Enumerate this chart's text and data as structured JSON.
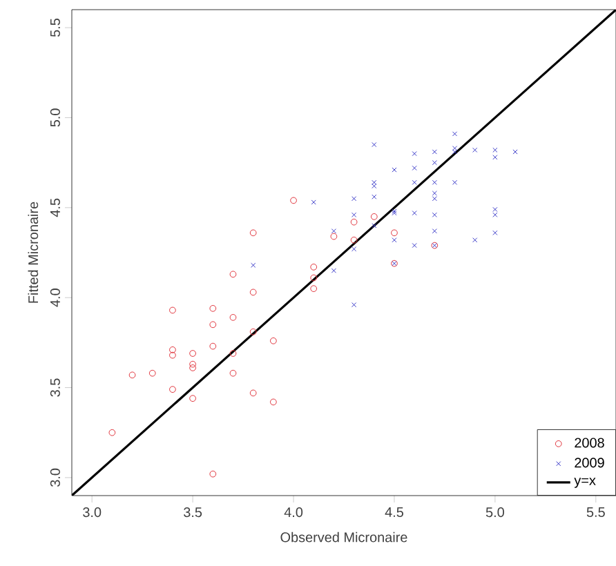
{
  "chart_data": {
    "type": "scatter",
    "xlabel": "Observed Micronaire",
    "ylabel": "Fitted Micronaire",
    "xlim": [
      2.9,
      5.6
    ],
    "ylim": [
      2.9,
      5.6
    ],
    "xticks": [
      {
        "value": 3.0,
        "label": "3.0"
      },
      {
        "value": 3.5,
        "label": "3.5"
      },
      {
        "value": 4.0,
        "label": "4.0"
      },
      {
        "value": 4.5,
        "label": "4.5"
      },
      {
        "value": 5.0,
        "label": "5.0"
      },
      {
        "value": 5.5,
        "label": "5.5"
      }
    ],
    "yticks": [
      {
        "value": 3.0,
        "label": "3.0"
      },
      {
        "value": 3.5,
        "label": "3.5"
      },
      {
        "value": 4.0,
        "label": "4.0"
      },
      {
        "value": 4.5,
        "label": "4.5"
      },
      {
        "value": 5.0,
        "label": "5.0"
      },
      {
        "value": 5.5,
        "label": "5.5"
      }
    ],
    "grid": false,
    "legend": "bottom right",
    "series": [
      {
        "name": "2008",
        "color": "#e0343c",
        "marker": "circle",
        "x": [
          3.1,
          3.2,
          3.3,
          3.4,
          3.4,
          3.4,
          3.4,
          3.5,
          3.5,
          3.5,
          3.5,
          3.6,
          3.6,
          3.6,
          3.6,
          3.7,
          3.7,
          3.7,
          3.7,
          3.8,
          3.8,
          3.8,
          3.8,
          3.9,
          3.9,
          4.0,
          4.1,
          4.1,
          4.1,
          4.2,
          4.3,
          4.3,
          4.4,
          4.5,
          4.5,
          4.7
        ],
        "values": [
          3.25,
          3.57,
          3.58,
          3.93,
          3.71,
          3.68,
          3.49,
          3.69,
          3.63,
          3.61,
          3.44,
          3.94,
          3.85,
          3.73,
          3.02,
          4.13,
          3.89,
          3.69,
          3.58,
          4.36,
          4.03,
          3.81,
          3.47,
          3.76,
          3.42,
          4.54,
          4.17,
          4.11,
          4.05,
          4.34,
          4.42,
          4.32,
          4.45,
          4.36,
          4.19,
          4.29
        ]
      },
      {
        "name": "2009",
        "color": "#3a3ac8",
        "marker": "cross",
        "x": [
          3.8,
          4.1,
          4.2,
          4.2,
          4.3,
          4.3,
          4.3,
          4.3,
          4.4,
          4.4,
          4.4,
          4.4,
          4.4,
          4.5,
          4.5,
          4.5,
          4.5,
          4.5,
          4.6,
          4.6,
          4.6,
          4.6,
          4.6,
          4.7,
          4.7,
          4.7,
          4.7,
          4.7,
          4.7,
          4.7,
          4.7,
          4.8,
          4.8,
          4.8,
          4.8,
          4.9,
          4.9,
          5.0,
          5.0,
          5.0,
          5.0,
          5.0,
          5.1
        ],
        "values": [
          4.18,
          4.53,
          4.37,
          4.15,
          4.55,
          4.46,
          4.27,
          3.96,
          4.85,
          4.64,
          4.62,
          4.56,
          4.4,
          4.71,
          4.48,
          4.47,
          4.32,
          4.19,
          4.8,
          4.72,
          4.64,
          4.47,
          4.29,
          4.81,
          4.75,
          4.64,
          4.58,
          4.55,
          4.46,
          4.37,
          4.29,
          4.91,
          4.83,
          4.81,
          4.64,
          4.82,
          4.32,
          4.82,
          4.78,
          4.49,
          4.46,
          4.36,
          4.81
        ]
      },
      {
        "name": "y=x",
        "color": "#000000",
        "type": "line",
        "x": [
          2.9,
          5.6
        ],
        "values": [
          2.9,
          5.6
        ]
      }
    ]
  }
}
